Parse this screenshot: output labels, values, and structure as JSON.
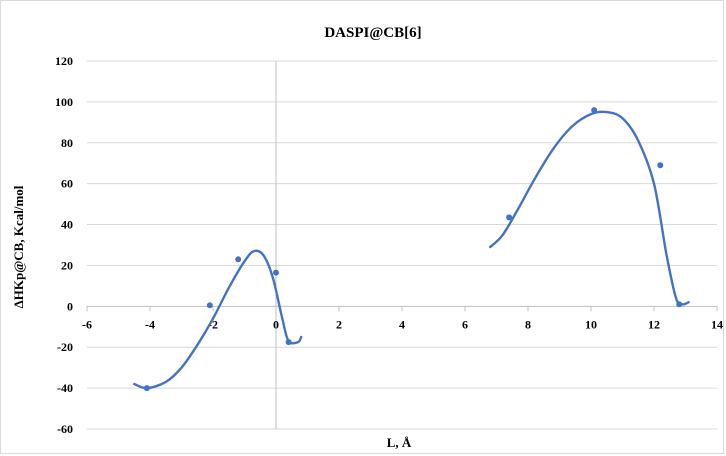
{
  "chart_data": {
    "type": "scatter",
    "title": "DASPI@CB[6]",
    "xlabel": "L, Å",
    "ylabel": "ΔHKp@CB,  Kcal/mol",
    "xlim": [
      -6,
      14
    ],
    "ylim": [
      -60,
      120
    ],
    "x_ticks": [
      -6,
      -4,
      -2,
      0,
      2,
      4,
      6,
      8,
      10,
      12,
      14
    ],
    "y_ticks": [
      -60,
      -40,
      -20,
      0,
      20,
      40,
      60,
      80,
      100,
      120
    ],
    "grid": "horizontal",
    "legend": "none",
    "color": "#4472c4",
    "points": [
      {
        "x": -4.1,
        "y": -40
      },
      {
        "x": -2.1,
        "y": 0.5
      },
      {
        "x": -1.2,
        "y": 23
      },
      {
        "x": 0.0,
        "y": 16.5
      },
      {
        "x": 0.4,
        "y": -17.5
      },
      {
        "x": 7.4,
        "y": 43.5
      },
      {
        "x": 10.1,
        "y": 96
      },
      {
        "x": 12.2,
        "y": 69
      },
      {
        "x": 12.8,
        "y": 1
      }
    ],
    "trendlines": [
      {
        "points": [
          [
            -4.5,
            -38
          ],
          [
            -4.1,
            -40
          ],
          [
            -3.5,
            -37
          ],
          [
            -3.0,
            -30
          ],
          [
            -2.5,
            -19
          ],
          [
            -2.0,
            -6
          ],
          [
            -1.5,
            9
          ],
          [
            -1.0,
            22
          ],
          [
            -0.7,
            27
          ],
          [
            -0.4,
            25
          ],
          [
            -0.1,
            14
          ],
          [
            0.2,
            -6
          ],
          [
            0.4,
            -17
          ],
          [
            0.7,
            -17.5
          ],
          [
            0.8,
            -15
          ]
        ]
      },
      {
        "points": [
          [
            6.8,
            29
          ],
          [
            7.2,
            35
          ],
          [
            7.7,
            48
          ],
          [
            8.2,
            62
          ],
          [
            8.8,
            77
          ],
          [
            9.4,
            88
          ],
          [
            10.0,
            94
          ],
          [
            10.5,
            95
          ],
          [
            11.0,
            92
          ],
          [
            11.5,
            81
          ],
          [
            12.0,
            60
          ],
          [
            12.4,
            25
          ],
          [
            12.7,
            4
          ],
          [
            12.9,
            1
          ],
          [
            13.1,
            2
          ]
        ]
      }
    ]
  }
}
